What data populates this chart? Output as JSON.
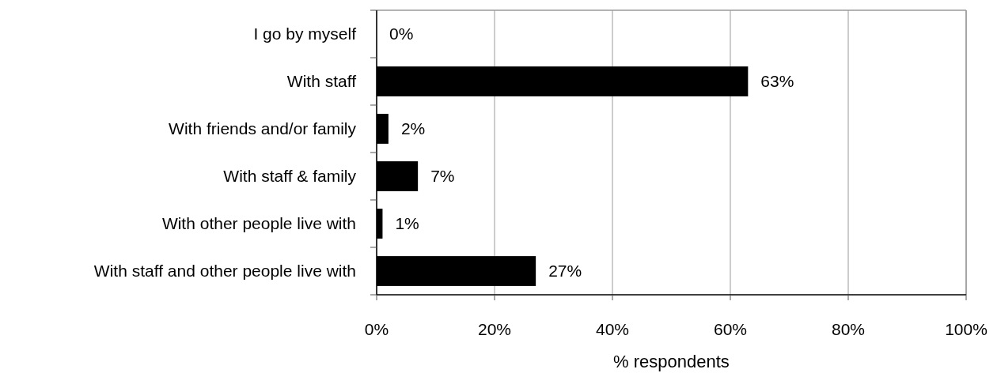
{
  "chart_data": {
    "type": "bar",
    "orientation": "horizontal",
    "categories": [
      "I go by myself",
      "With staff",
      "With friends and/or family",
      "With staff & family",
      "With other people live with",
      "With staff and other people live with"
    ],
    "values": [
      0,
      63,
      2,
      7,
      1,
      27
    ],
    "color": "#000000",
    "value_labels": [
      "0%",
      "63%",
      "2%",
      "7%",
      "1%",
      "27%"
    ],
    "xlabel": "% respondents",
    "xlim": [
      0,
      100
    ],
    "xticks": [
      {
        "value": 0,
        "label": "0%"
      },
      {
        "value": 20,
        "label": "20%"
      },
      {
        "value": 40,
        "label": "40%"
      },
      {
        "value": 60,
        "label": "60%"
      },
      {
        "value": 80,
        "label": "80%"
      },
      {
        "value": 100,
        "label": "100%"
      }
    ],
    "grid": "x"
  }
}
